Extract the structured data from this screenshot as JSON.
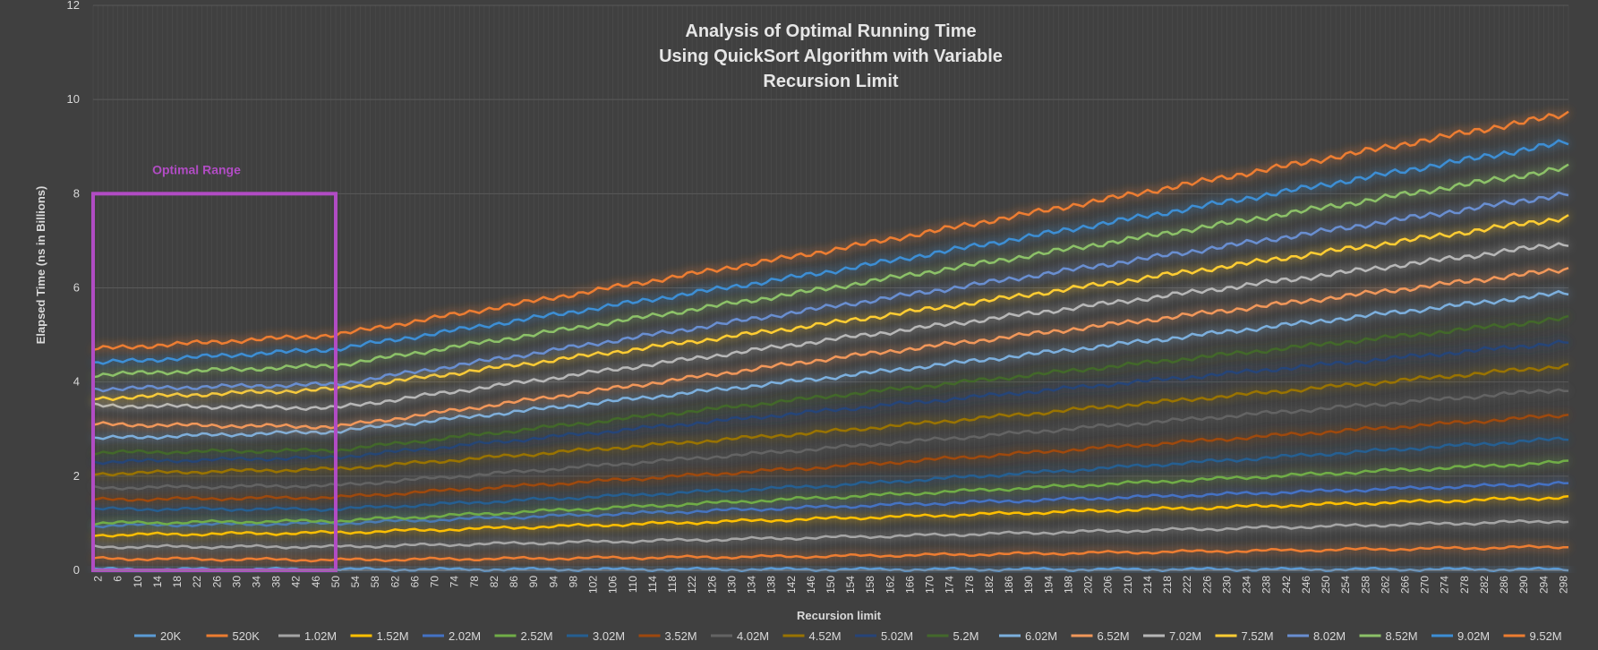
{
  "chart_data": {
    "type": "line",
    "title": [
      "Analysis of Optimal Running Time",
      "Using QuickSort Algorithm with Variable",
      "Recursion Limit"
    ],
    "xlabel": "Recursion limit",
    "ylabel": "Elapsed Time (ns in Billions)",
    "ylim": [
      0,
      12
    ],
    "y_ticks": [
      0,
      2,
      4,
      6,
      8,
      10,
      12
    ],
    "x_range": [
      1,
      299
    ],
    "x_tick_start": 2,
    "x_tick_step": 4,
    "x_tick_end": 298,
    "grid": "on",
    "legend_position": "bottom",
    "annotation": {
      "label": "Optimal Range",
      "x_range": [
        1,
        50
      ],
      "y_range": [
        0,
        8
      ],
      "color": "#b14cc4"
    },
    "series": [
      {
        "name": "20K",
        "color": "#5b9bd5",
        "values_at": {
          "x": [
            1,
            50,
            150,
            299
          ],
          "y": [
            0.02,
            0.02,
            0.02,
            0.02
          ]
        }
      },
      {
        "name": "520K",
        "color": "#ed7d31",
        "values_at": {
          "x": [
            1,
            50,
            150,
            299
          ],
          "y": [
            0.25,
            0.22,
            0.3,
            0.5
          ]
        }
      },
      {
        "name": "1.02M",
        "color": "#a5a5a5",
        "values_at": {
          "x": [
            1,
            50,
            150,
            299
          ],
          "y": [
            0.5,
            0.5,
            0.7,
            1.05
          ]
        }
      },
      {
        "name": "1.52M",
        "color": "#ffc000",
        "values_at": {
          "x": [
            1,
            50,
            150,
            299
          ],
          "y": [
            0.75,
            0.8,
            1.1,
            1.55
          ]
        }
      },
      {
        "name": "2.02M",
        "color": "#4472c4",
        "values_at": {
          "x": [
            1,
            50,
            150,
            299
          ],
          "y": [
            0.95,
            1.0,
            1.35,
            1.85
          ]
        }
      },
      {
        "name": "2.52M",
        "color": "#70ad47",
        "values_at": {
          "x": [
            1,
            50,
            150,
            299
          ],
          "y": [
            1.0,
            1.05,
            1.55,
            2.3
          ]
        }
      },
      {
        "name": "3.02M",
        "color": "#255e91",
        "values_at": {
          "x": [
            1,
            50,
            150,
            299
          ],
          "y": [
            1.3,
            1.3,
            1.8,
            2.8
          ]
        }
      },
      {
        "name": "3.52M",
        "color": "#9e480e",
        "values_at": {
          "x": [
            1,
            50,
            150,
            299
          ],
          "y": [
            1.5,
            1.55,
            2.2,
            3.3
          ]
        }
      },
      {
        "name": "4.02M",
        "color": "#636363",
        "values_at": {
          "x": [
            1,
            50,
            150,
            299
          ],
          "y": [
            1.75,
            1.8,
            2.6,
            3.85
          ]
        }
      },
      {
        "name": "4.52M",
        "color": "#997300",
        "values_at": {
          "x": [
            1,
            50,
            150,
            299
          ],
          "y": [
            2.05,
            2.15,
            2.95,
            4.35
          ]
        }
      },
      {
        "name": "5.02M",
        "color": "#264478",
        "values_at": {
          "x": [
            1,
            50,
            150,
            299
          ],
          "y": [
            2.3,
            2.4,
            3.4,
            4.85
          ]
        }
      },
      {
        "name": "5.2M",
        "color": "#43682b",
        "values_at": {
          "x": [
            1,
            50,
            150,
            299
          ],
          "y": [
            2.5,
            2.55,
            3.7,
            5.35
          ]
        }
      },
      {
        "name": "6.02M",
        "color": "#7cafdd",
        "values_at": {
          "x": [
            1,
            50,
            150,
            299
          ],
          "y": [
            2.8,
            2.95,
            4.1,
            5.9
          ]
        }
      },
      {
        "name": "6.52M",
        "color": "#f1975a",
        "values_at": {
          "x": [
            1,
            50,
            150,
            299
          ],
          "y": [
            3.1,
            3.05,
            4.5,
            6.4
          ]
        }
      },
      {
        "name": "7.02M",
        "color": "#b7b7b7",
        "values_at": {
          "x": [
            1,
            50,
            150,
            299
          ],
          "y": [
            3.5,
            3.45,
            4.9,
            6.95
          ]
        }
      },
      {
        "name": "7.52M",
        "color": "#ffcd33",
        "values_at": {
          "x": [
            1,
            50,
            150,
            299
          ],
          "y": [
            3.65,
            3.85,
            5.25,
            7.5
          ]
        }
      },
      {
        "name": "8.02M",
        "color": "#698ed0",
        "values_at": {
          "x": [
            1,
            50,
            150,
            299
          ],
          "y": [
            3.85,
            3.95,
            5.6,
            8.0
          ]
        }
      },
      {
        "name": "8.52M",
        "color": "#8cc168",
        "values_at": {
          "x": [
            1,
            50,
            150,
            299
          ],
          "y": [
            4.15,
            4.35,
            6.0,
            8.55
          ]
        }
      },
      {
        "name": "9.02M",
        "color": "#3d8ed4",
        "values_at": {
          "x": [
            1,
            50,
            150,
            299
          ],
          "y": [
            4.4,
            4.7,
            6.35,
            9.1
          ]
        }
      },
      {
        "name": "9.52M",
        "color": "#ed7d31",
        "values_at": {
          "x": [
            1,
            50,
            150,
            299
          ],
          "y": [
            4.7,
            5.0,
            6.8,
            9.7
          ]
        }
      }
    ]
  }
}
